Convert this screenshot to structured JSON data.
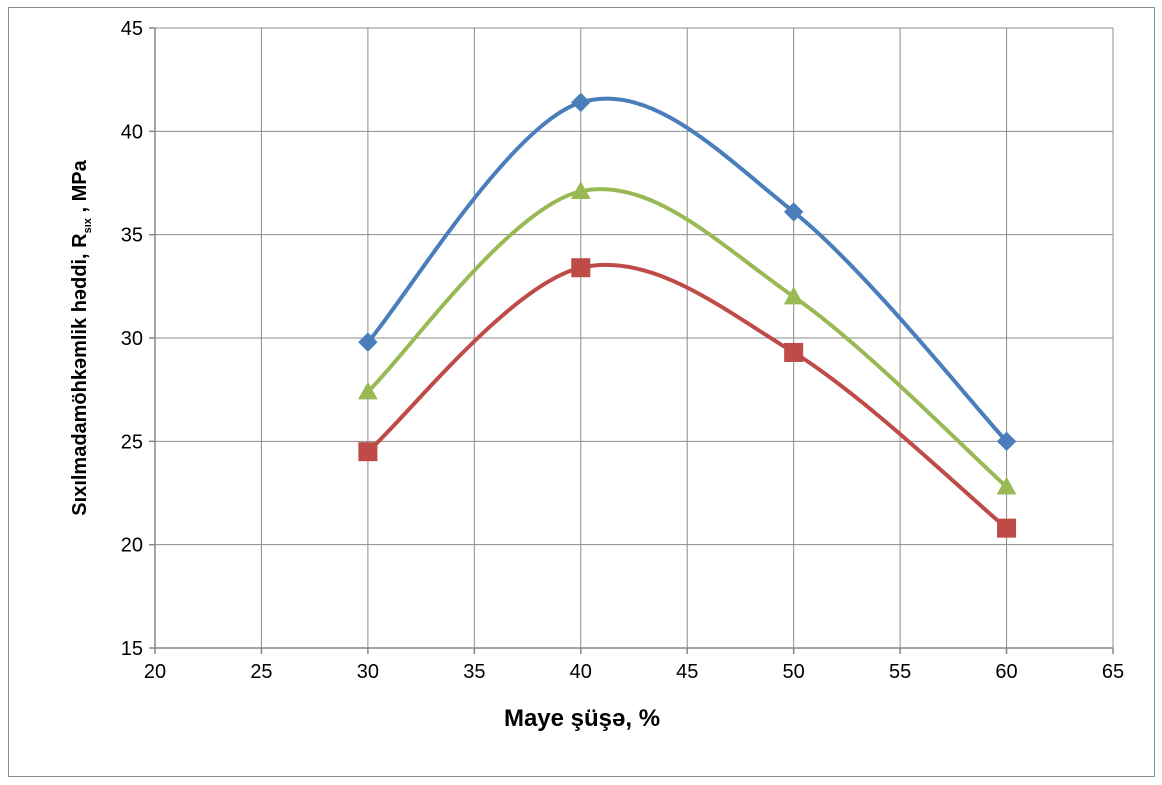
{
  "chart_data": {
    "type": "line",
    "title": "",
    "xlabel": "Maye şüşə, %",
    "ylabel_main": "Sıxılmadamöhkəmlik həddi, R",
    "ylabel_sub": "sıx",
    "ylabel_tail": " , MPa",
    "xlim": [
      20,
      65
    ],
    "ylim": [
      15,
      45
    ],
    "x_ticks": [
      20,
      25,
      30,
      35,
      40,
      45,
      50,
      55,
      60,
      65
    ],
    "y_ticks": [
      15,
      20,
      25,
      30,
      35,
      40,
      45
    ],
    "grid": true,
    "smooth": true,
    "x": [
      30,
      40,
      50,
      60
    ],
    "series": [
      {
        "color": "#4a7ebb",
        "marker": "diamond",
        "values": [
          29.8,
          41.4,
          36.1,
          25.0
        ]
      },
      {
        "color": "#98b954",
        "marker": "triangle",
        "values": [
          27.4,
          37.1,
          32.0,
          22.8
        ]
      },
      {
        "color": "#be4b48",
        "marker": "square",
        "values": [
          24.5,
          33.4,
          29.3,
          20.8
        ]
      }
    ]
  }
}
